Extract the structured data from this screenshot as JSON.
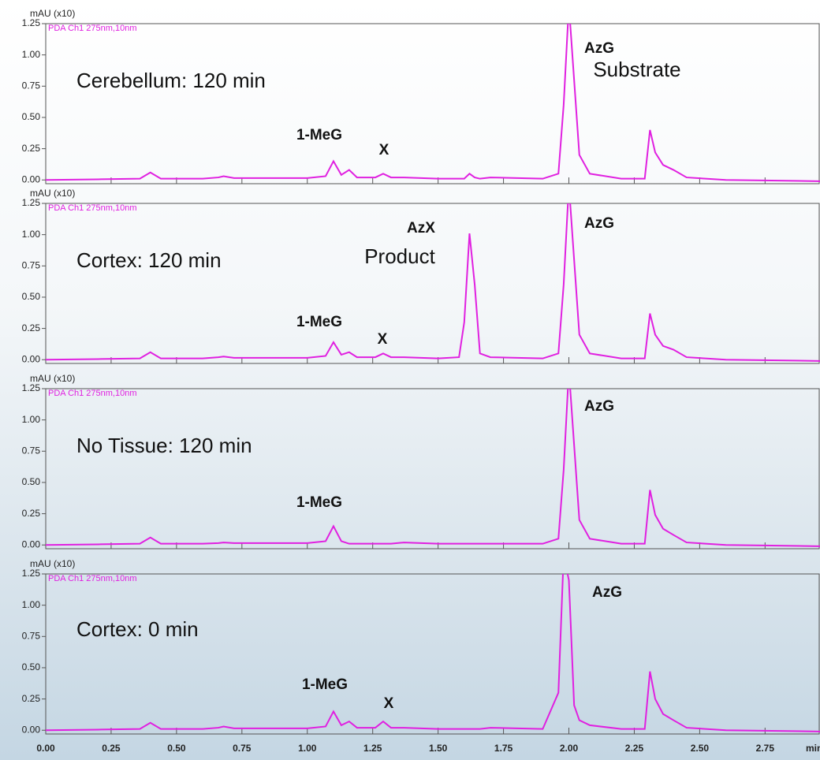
{
  "chart_data": [
    {
      "type": "line",
      "title": "Cerebellum: 120 min",
      "ylabel": "mAU (x10)",
      "x": [
        0,
        0.2,
        0.36,
        0.4,
        0.44,
        0.6,
        0.66,
        0.68,
        0.72,
        1.0,
        1.07,
        1.1,
        1.13,
        1.16,
        1.19,
        1.26,
        1.29,
        1.32,
        1.37,
        1.5,
        1.58,
        1.6,
        1.62,
        1.64,
        1.66,
        1.7,
        1.9,
        1.96,
        1.98,
        2.0,
        2.02,
        2.04,
        2.08,
        2.2,
        2.29,
        2.31,
        2.33,
        2.36,
        2.4,
        2.45,
        2.6,
        2.96
      ],
      "series": [
        {
          "name": "PDA Ch1 275nm,10nm",
          "color": "#e020e0",
          "values": [
            0,
            0.005,
            0.01,
            0.06,
            0.01,
            0.01,
            0.02,
            0.03,
            0.015,
            0.015,
            0.03,
            0.15,
            0.04,
            0.08,
            0.02,
            0.02,
            0.05,
            0.02,
            0.02,
            0.01,
            0.01,
            0.01,
            0.05,
            0.02,
            0.01,
            0.02,
            0.01,
            0.05,
            0.6,
            1.4,
            0.8,
            0.2,
            0.05,
            0.01,
            0.01,
            0.4,
            0.22,
            0.12,
            0.08,
            0.02,
            0,
            -0.01
          ]
        }
      ],
      "annotations": [
        "1-MeG",
        "X",
        "AzG",
        "Substrate"
      ],
      "xlim": [
        0,
        2.96
      ],
      "ylim": [
        -0.03,
        1.25
      ],
      "yticks": [
        {
          "value": 0,
          "label": "0.00"
        },
        {
          "value": 0.25,
          "label": "0.25"
        },
        {
          "value": 0.5,
          "label": "0.50"
        },
        {
          "value": 0.75,
          "label": "0.75"
        },
        {
          "value": 1,
          "label": "1.00"
        },
        {
          "value": 1.25,
          "label": "1.25"
        }
      ]
    },
    {
      "type": "line",
      "title": "Cortex: 120 min",
      "ylabel": "mAU (x10)",
      "x": [
        0,
        0.2,
        0.36,
        0.4,
        0.44,
        0.6,
        0.66,
        0.68,
        0.72,
        1.0,
        1.07,
        1.1,
        1.13,
        1.16,
        1.19,
        1.26,
        1.29,
        1.32,
        1.37,
        1.5,
        1.58,
        1.6,
        1.62,
        1.64,
        1.66,
        1.7,
        1.9,
        1.96,
        1.98,
        2.0,
        2.02,
        2.04,
        2.08,
        2.2,
        2.29,
        2.31,
        2.33,
        2.36,
        2.4,
        2.45,
        2.6,
        2.96
      ],
      "series": [
        {
          "name": "PDA Ch1 275nm,10nm",
          "color": "#e020e0",
          "values": [
            0,
            0.005,
            0.01,
            0.06,
            0.01,
            0.01,
            0.02,
            0.025,
            0.015,
            0.015,
            0.03,
            0.14,
            0.04,
            0.06,
            0.02,
            0.02,
            0.05,
            0.02,
            0.02,
            0.01,
            0.02,
            0.3,
            1.01,
            0.6,
            0.05,
            0.02,
            0.01,
            0.05,
            0.6,
            1.4,
            0.8,
            0.2,
            0.05,
            0.01,
            0.01,
            0.37,
            0.2,
            0.11,
            0.08,
            0.02,
            0,
            -0.01
          ]
        }
      ],
      "annotations": [
        "AzX",
        "Product",
        "1-MeG",
        "X",
        "AzG"
      ],
      "xlim": [
        0,
        2.96
      ],
      "ylim": [
        -0.03,
        1.25
      ],
      "yticks": [
        {
          "value": 0,
          "label": "0.00"
        },
        {
          "value": 0.25,
          "label": "0.25"
        },
        {
          "value": 0.5,
          "label": "0.50"
        },
        {
          "value": 0.75,
          "label": "0.75"
        },
        {
          "value": 1,
          "label": "1.00"
        },
        {
          "value": 1.25,
          "label": "1.25"
        }
      ]
    },
    {
      "type": "line",
      "title": "No Tissue: 120 min",
      "ylabel": "mAU (x10)",
      "x": [
        0,
        0.2,
        0.36,
        0.4,
        0.44,
        0.6,
        0.66,
        0.68,
        0.72,
        1.0,
        1.07,
        1.1,
        1.13,
        1.16,
        1.19,
        1.26,
        1.29,
        1.32,
        1.37,
        1.5,
        1.58,
        1.6,
        1.62,
        1.64,
        1.66,
        1.7,
        1.9,
        1.96,
        1.98,
        2.0,
        2.02,
        2.04,
        2.08,
        2.2,
        2.29,
        2.31,
        2.33,
        2.36,
        2.4,
        2.45,
        2.6,
        2.96
      ],
      "series": [
        {
          "name": "PDA Ch1 275nm,10nm",
          "color": "#e020e0",
          "values": [
            0,
            0.005,
            0.01,
            0.06,
            0.01,
            0.01,
            0.015,
            0.02,
            0.015,
            0.015,
            0.03,
            0.15,
            0.03,
            0.01,
            0.01,
            0.01,
            0.01,
            0.01,
            0.02,
            0.01,
            0.01,
            0.01,
            0.01,
            0.01,
            0.01,
            0.01,
            0.01,
            0.05,
            0.6,
            1.4,
            0.8,
            0.2,
            0.05,
            0.01,
            0.01,
            0.44,
            0.24,
            0.13,
            0.08,
            0.02,
            0,
            -0.01
          ]
        }
      ],
      "annotations": [
        "AzG",
        "1-MeG"
      ],
      "xlim": [
        0,
        2.96
      ],
      "ylim": [
        -0.03,
        1.25
      ],
      "yticks": [
        {
          "value": 0,
          "label": "0.00"
        },
        {
          "value": 0.25,
          "label": "0.25"
        },
        {
          "value": 0.5,
          "label": "0.50"
        },
        {
          "value": 0.75,
          "label": "0.75"
        },
        {
          "value": 1,
          "label": "1.00"
        },
        {
          "value": 1.25,
          "label": "1.25"
        }
      ]
    },
    {
      "type": "line",
      "title": "Cortex: 0 min",
      "ylabel": "mAU (x10)",
      "xlabel": "min",
      "x": [
        0,
        0.2,
        0.36,
        0.4,
        0.44,
        0.6,
        0.66,
        0.68,
        0.72,
        1.0,
        1.07,
        1.1,
        1.13,
        1.16,
        1.19,
        1.26,
        1.29,
        1.32,
        1.37,
        1.5,
        1.58,
        1.6,
        1.62,
        1.64,
        1.66,
        1.7,
        1.9,
        1.96,
        1.98,
        2.0,
        2.02,
        2.04,
        2.08,
        2.2,
        2.29,
        2.31,
        2.33,
        2.36,
        2.4,
        2.45,
        2.6,
        2.96
      ],
      "series": [
        {
          "name": "PDA Ch1 275nm,10nm",
          "color": "#e020e0",
          "values": [
            0,
            0.005,
            0.01,
            0.06,
            0.01,
            0.01,
            0.02,
            0.03,
            0.015,
            0.015,
            0.03,
            0.15,
            0.04,
            0.07,
            0.02,
            0.02,
            0.07,
            0.02,
            0.02,
            0.01,
            0.01,
            0.01,
            0.01,
            0.01,
            0.01,
            0.02,
            0.01,
            0.3,
            1.4,
            1.2,
            0.2,
            0.08,
            0.04,
            0.01,
            0.01,
            0.47,
            0.25,
            0.13,
            0.08,
            0.02,
            0,
            -0.01
          ]
        }
      ],
      "annotations": [
        "AzG",
        "1-MeG",
        "X"
      ],
      "xlim": [
        0,
        2.96
      ],
      "ylim": [
        -0.03,
        1.25
      ],
      "xticks": [
        {
          "value": 0,
          "label": "0.00"
        },
        {
          "value": 0.25,
          "label": "0.25"
        },
        {
          "value": 0.5,
          "label": "0.50"
        },
        {
          "value": 0.75,
          "label": "0.75"
        },
        {
          "value": 1,
          "label": "1.00"
        },
        {
          "value": 1.25,
          "label": "1.25"
        },
        {
          "value": 1.5,
          "label": "1.50"
        },
        {
          "value": 1.75,
          "label": "1.75"
        },
        {
          "value": 2,
          "label": "2.00"
        },
        {
          "value": 2.25,
          "label": "2.25"
        },
        {
          "value": 2.5,
          "label": "2.50"
        },
        {
          "value": 2.75,
          "label": "2.75"
        }
      ],
      "yticks": [
        {
          "value": 0,
          "label": "0.00"
        },
        {
          "value": 0.25,
          "label": "0.25"
        },
        {
          "value": 0.5,
          "label": "0.50"
        },
        {
          "value": 0.75,
          "label": "0.75"
        },
        {
          "value": 1,
          "label": "1.00"
        },
        {
          "value": 1.25,
          "label": "1.25"
        }
      ]
    }
  ]
}
